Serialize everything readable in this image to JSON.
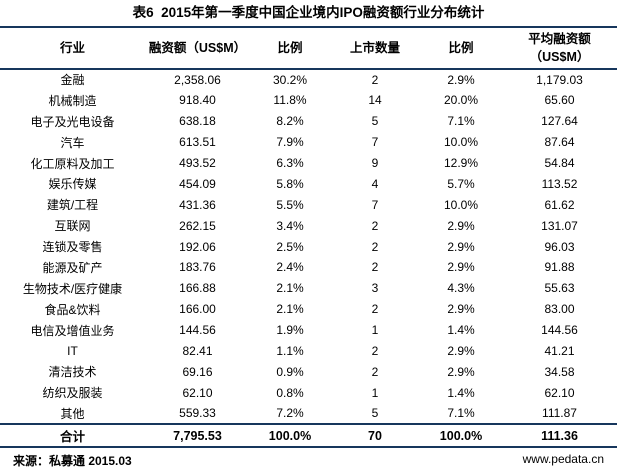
{
  "colors": {
    "rule": "#16365c",
    "text": "#000000",
    "background": "#ffffff"
  },
  "footer": {
    "source": "来源：私募通 2015.03",
    "site": "www.pedata.cn"
  },
  "chart_data": {
    "type": "table",
    "title": "表6  2015年第一季度中国企业境内IPO融资额行业分布统计",
    "columns": [
      "行业",
      "融资额（US$M）",
      "比例",
      "上市数量",
      "比例",
      "平均融资额\n（US$M）"
    ],
    "rows": [
      [
        "金融",
        "2,358.06",
        "30.2%",
        "2",
        "2.9%",
        "1,179.03"
      ],
      [
        "机械制造",
        "918.40",
        "11.8%",
        "14",
        "20.0%",
        "65.60"
      ],
      [
        "电子及光电设备",
        "638.18",
        "8.2%",
        "5",
        "7.1%",
        "127.64"
      ],
      [
        "汽车",
        "613.51",
        "7.9%",
        "7",
        "10.0%",
        "87.64"
      ],
      [
        "化工原料及加工",
        "493.52",
        "6.3%",
        "9",
        "12.9%",
        "54.84"
      ],
      [
        "娱乐传媒",
        "454.09",
        "5.8%",
        "4",
        "5.7%",
        "113.52"
      ],
      [
        "建筑/工程",
        "431.36",
        "5.5%",
        "7",
        "10.0%",
        "61.62"
      ],
      [
        "互联网",
        "262.15",
        "3.4%",
        "2",
        "2.9%",
        "131.07"
      ],
      [
        "连锁及零售",
        "192.06",
        "2.5%",
        "2",
        "2.9%",
        "96.03"
      ],
      [
        "能源及矿产",
        "183.76",
        "2.4%",
        "2",
        "2.9%",
        "91.88"
      ],
      [
        "生物技术/医疗健康",
        "166.88",
        "2.1%",
        "3",
        "4.3%",
        "55.63"
      ],
      [
        "食品&饮料",
        "166.00",
        "2.1%",
        "2",
        "2.9%",
        "83.00"
      ],
      [
        "电信及增值业务",
        "144.56",
        "1.9%",
        "1",
        "1.4%",
        "144.56"
      ],
      [
        "IT",
        "82.41",
        "1.1%",
        "2",
        "2.9%",
        "41.21"
      ],
      [
        "清洁技术",
        "69.16",
        "0.9%",
        "2",
        "2.9%",
        "34.58"
      ],
      [
        "纺织及服装",
        "62.10",
        "0.8%",
        "1",
        "1.4%",
        "62.10"
      ],
      [
        "其他",
        "559.33",
        "7.2%",
        "5",
        "7.1%",
        "111.87"
      ]
    ],
    "total": [
      "合计",
      "7,795.53",
      "100.0%",
      "70",
      "100.0%",
      "111.36"
    ]
  }
}
